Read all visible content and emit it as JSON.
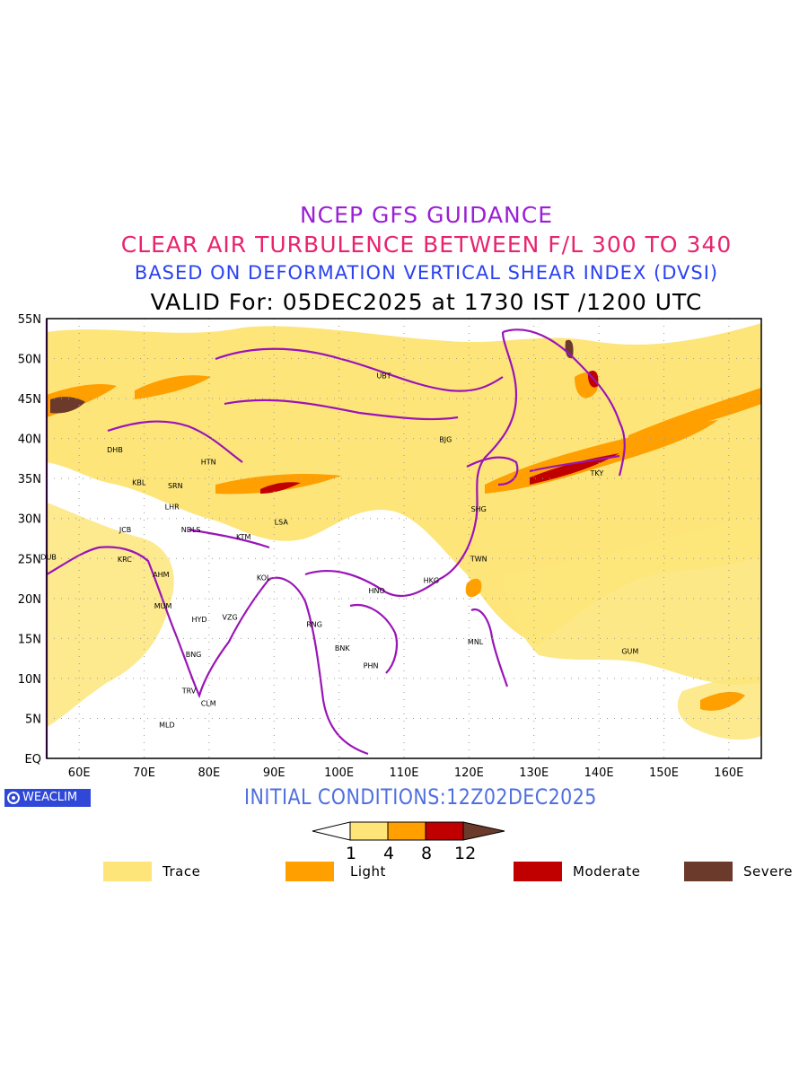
{
  "titles": {
    "line1": "NCEP GFS GUIDANCE",
    "line2": "CLEAR AIR TURBULENCE BETWEEN F/L 300 TO 340",
    "line3": "BASED ON DEFORMATION VERTICAL SHEAR INDEX (DVSI)",
    "line4": "VALID For: 05DEC2025 at 1730 IST /1200 UTC"
  },
  "axes": {
    "lat_labels": [
      "55N",
      "50N",
      "45N",
      "40N",
      "35N",
      "30N",
      "25N",
      "20N",
      "15N",
      "10N",
      "5N",
      "EQ"
    ],
    "lon_labels": [
      "60E",
      "70E",
      "80E",
      "90E",
      "100E",
      "110E",
      "120E",
      "130E",
      "140E",
      "150E",
      "160E"
    ],
    "lat_range": [
      0,
      55
    ],
    "lon_range": [
      55,
      165
    ]
  },
  "stations": [
    {
      "code": "UBT",
      "lon": 106.9,
      "lat": 47.9
    },
    {
      "code": "BJG",
      "lon": 116.4,
      "lat": 39.9
    },
    {
      "code": "DHB",
      "lon": 65.5,
      "lat": 38.6
    },
    {
      "code": "HTN",
      "lon": 79.9,
      "lat": 37.1
    },
    {
      "code": "KBL",
      "lon": 69.2,
      "lat": 34.5
    },
    {
      "code": "SRN",
      "lon": 74.8,
      "lat": 34.1
    },
    {
      "code": "LHR",
      "lon": 74.3,
      "lat": 31.5
    },
    {
      "code": "TKY",
      "lon": 139.7,
      "lat": 35.7
    },
    {
      "code": "SHG",
      "lon": 121.5,
      "lat": 31.2
    },
    {
      "code": "JCB",
      "lon": 67.1,
      "lat": 28.6
    },
    {
      "code": "NDLS",
      "lon": 77.2,
      "lat": 28.6
    },
    {
      "code": "LSA",
      "lon": 91.1,
      "lat": 29.6
    },
    {
      "code": "KTM",
      "lon": 85.3,
      "lat": 27.7
    },
    {
      "code": "DUB",
      "lon": 55.3,
      "lat": 25.2
    },
    {
      "code": "KRC",
      "lon": 67.0,
      "lat": 24.9
    },
    {
      "code": "TWN",
      "lon": 121.5,
      "lat": 25.0
    },
    {
      "code": "AHM",
      "lon": 72.6,
      "lat": 23.0
    },
    {
      "code": "KOL",
      "lon": 88.4,
      "lat": 22.6
    },
    {
      "code": "HKG",
      "lon": 114.2,
      "lat": 22.3
    },
    {
      "code": "HNO",
      "lon": 105.8,
      "lat": 21.0
    },
    {
      "code": "MUM",
      "lon": 72.9,
      "lat": 19.1
    },
    {
      "code": "HYD",
      "lon": 78.5,
      "lat": 17.4
    },
    {
      "code": "VZG",
      "lon": 83.2,
      "lat": 17.7
    },
    {
      "code": "RNG",
      "lon": 96.2,
      "lat": 16.8
    },
    {
      "code": "MNL",
      "lon": 121.0,
      "lat": 14.6
    },
    {
      "code": "BNK",
      "lon": 100.5,
      "lat": 13.8
    },
    {
      "code": "GUM",
      "lon": 144.8,
      "lat": 13.4
    },
    {
      "code": "BNG",
      "lon": 77.6,
      "lat": 13.0
    },
    {
      "code": "PHN",
      "lon": 104.9,
      "lat": 11.6
    },
    {
      "code": "TRV",
      "lon": 76.9,
      "lat": 8.5
    },
    {
      "code": "CLM",
      "lon": 79.9,
      "lat": 6.9
    },
    {
      "code": "MLD",
      "lon": 73.5,
      "lat": 4.2
    }
  ],
  "branding": {
    "logo_text": "WEACLIM"
  },
  "initial_conditions": "INITIAL CONDITIONS:12Z02DEC2025",
  "colorbar": {
    "ticks": [
      "1",
      "4",
      "8",
      "12"
    ],
    "colors": [
      "#ffffff",
      "#fde57a",
      "#ff9f00",
      "#c00000",
      "#6b3a2a"
    ]
  },
  "legend": [
    {
      "label": "Trace",
      "color": "#fde57a"
    },
    {
      "label": "Light",
      "color": "#ff9f00"
    },
    {
      "label": "Moderate",
      "color": "#c00000"
    },
    {
      "label": "Severe",
      "color": "#6b3a2a"
    }
  ]
}
